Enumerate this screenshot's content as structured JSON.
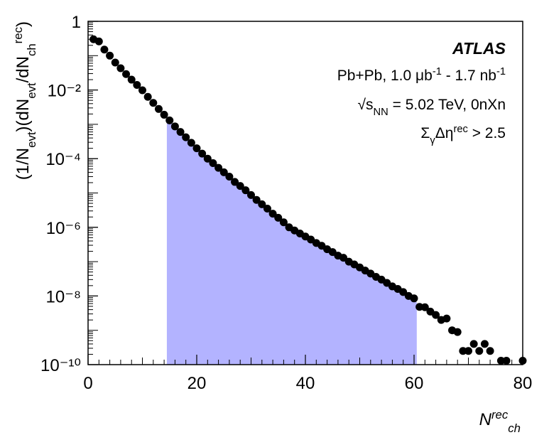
{
  "chart_data": {
    "type": "scatter",
    "annotations": [
      [
        "ATLAS"
      ],
      [
        "Pb+Pb, 1.0 μb",
        {
          "sup": "-1"
        },
        " - 1.7 nb",
        {
          "sup": "-1"
        }
      ],
      [
        "√s",
        {
          "sub": "NN"
        },
        " = 5.02 TeV, 0nXn"
      ],
      [
        "Σ",
        {
          "sub": "γ"
        },
        "Δη",
        {
          "sup": "rec"
        },
        " > 2.5"
      ]
    ],
    "xlabel": [
      "N",
      {
        "sup": "rec"
      },
      {
        "sub": "ch"
      }
    ],
    "ylabel": [
      "(1/N",
      {
        "sub": "evt"
      },
      ")(dN",
      {
        "sub": "evt"
      },
      "/dN",
      {
        "sub": "ch"
      },
      {
        "sup": "rec"
      },
      ")"
    ],
    "x": [
      1,
      2,
      3,
      4,
      5,
      6,
      7,
      8,
      9,
      10,
      11,
      12,
      13,
      14,
      15,
      16,
      17,
      18,
      19,
      20,
      21,
      22,
      23,
      24,
      25,
      26,
      27,
      28,
      29,
      30,
      31,
      32,
      33,
      34,
      35,
      36,
      37,
      38,
      39,
      40,
      41,
      42,
      43,
      44,
      45,
      46,
      47,
      48,
      49,
      50,
      51,
      52,
      53,
      54,
      55,
      56,
      57,
      58,
      59,
      60,
      61,
      62,
      63,
      64,
      65,
      66,
      67,
      68,
      69,
      70,
      71,
      72,
      73,
      74,
      76,
      77,
      80
    ],
    "series": [
      {
        "color": "#000000",
        "values": [
          0.3,
          0.26,
          0.15,
          0.1,
          0.063,
          0.043,
          0.029,
          0.02,
          0.014,
          0.0098,
          0.0063,
          0.0042,
          0.0028,
          0.0019,
          0.0013,
          0.00087,
          0.0006,
          0.00042,
          0.00029,
          0.0002,
          0.00014,
          0.0001,
          7.4e-05,
          5.4e-05,
          4e-05,
          3e-05,
          2.1e-05,
          1.6e-05,
          1.2e-05,
          8.7e-06,
          6.3e-06,
          4.7e-06,
          3.5e-06,
          2.5e-06,
          1.9e-06,
          1.4e-06,
          1e-06,
          8.1e-07,
          6.6e-07,
          5.4e-07,
          4.4e-07,
          3.5e-07,
          2.9e-07,
          2.3e-07,
          1.9e-07,
          1.5e-07,
          1.3e-07,
          1e-07,
          8.3e-08,
          6.8e-08,
          5.5e-08,
          4.5e-08,
          3.6e-08,
          3e-08,
          2.4e-08,
          1.9e-08,
          1.6e-08,
          1.3e-08,
          1e-08,
          8.5e-09,
          4.8e-09,
          4.7e-09,
          3.5e-09,
          2.8e-09,
          2e-09,
          2.2e-09,
          1e-09,
          8.9e-10,
          2.5e-10,
          2.5e-10,
          4e-10,
          2.5e-10,
          4e-10,
          2.5e-10,
          1.3e-10,
          1.3e-10,
          1.3e-10
        ]
      }
    ],
    "shaded_range": {
      "x": [
        14.5,
        60.5
      ],
      "color": "#b3b3ff"
    },
    "xlim": [
      0,
      80
    ],
    "xticks": [
      0,
      20,
      40,
      60,
      80
    ],
    "ylim": [
      1e-10,
      1
    ],
    "log_y": true,
    "yticks": [
      1,
      {
        "value": 0.01,
        "label": "10⁻²"
      },
      {
        "value": 0.0001,
        "label": "10⁻⁴"
      },
      {
        "value": 1e-06,
        "label": "10⁻⁶"
      },
      {
        "value": 1e-08,
        "label": "10⁻⁸"
      },
      {
        "value": 1e-10,
        "label": "10⁻¹⁰"
      }
    ]
  }
}
